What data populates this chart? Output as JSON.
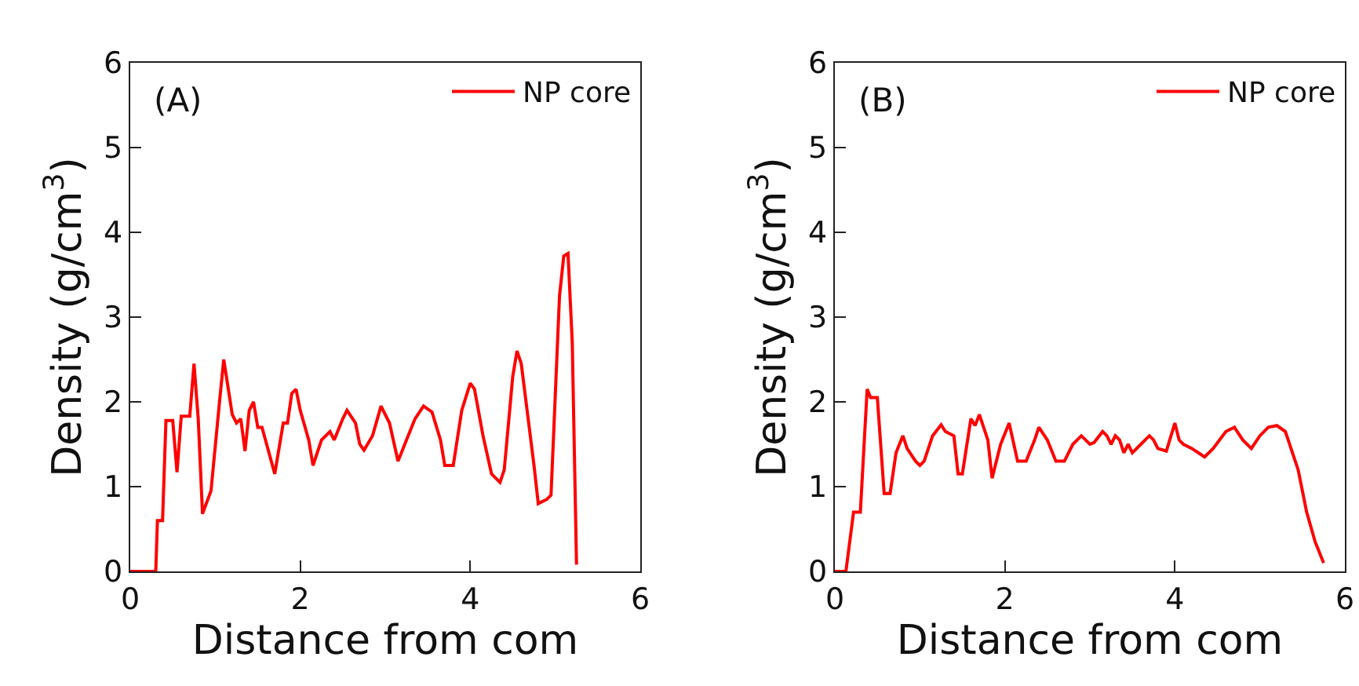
{
  "chart_data": [
    {
      "type": "line",
      "xlabel": "Distance from com",
      "ylabel": "Density (g/cm$^{3}$)",
      "annotations": [
        "(A)"
      ],
      "xlim": [
        0,
        6
      ],
      "ylim": [
        0,
        6
      ],
      "xticks": [
        0,
        2,
        4,
        6
      ],
      "yticks": [
        0,
        1,
        2,
        3,
        4,
        5,
        6
      ],
      "grid": false,
      "legend": "top right",
      "marker": "none",
      "line_style": "solid",
      "series": [
        {
          "name": "NP core",
          "color": "#ff0000",
          "x": [
            0,
            0.3,
            0.32,
            0.38,
            0.42,
            0.5,
            0.55,
            0.6,
            0.7,
            0.75,
            0.8,
            0.85,
            0.95,
            1.05,
            1.1,
            1.2,
            1.25,
            1.3,
            1.35,
            1.4,
            1.45,
            1.5,
            1.55,
            1.7,
            1.8,
            1.85,
            1.9,
            1.95,
            2.0,
            2.1,
            2.15,
            2.25,
            2.35,
            2.4,
            2.5,
            2.55,
            2.65,
            2.7,
            2.75,
            2.85,
            2.95,
            3.05,
            3.15,
            3.25,
            3.35,
            3.45,
            3.55,
            3.65,
            3.7,
            3.8,
            3.9,
            4.0,
            4.05,
            4.15,
            4.25,
            4.35,
            4.4,
            4.5,
            4.55,
            4.6,
            4.75,
            4.8,
            4.9,
            4.95,
            5.05,
            5.1,
            5.15,
            5.2,
            5.25
          ],
          "values": [
            0,
            0,
            0.6,
            0.6,
            1.78,
            1.78,
            1.17,
            1.83,
            1.83,
            2.45,
            1.8,
            0.68,
            0.95,
            2.0,
            2.5,
            1.85,
            1.75,
            1.8,
            1.42,
            1.9,
            2.0,
            1.7,
            1.7,
            1.15,
            1.75,
            1.75,
            2.1,
            2.15,
            1.9,
            1.55,
            1.25,
            1.55,
            1.65,
            1.55,
            1.8,
            1.9,
            1.75,
            1.5,
            1.43,
            1.6,
            1.95,
            1.75,
            1.3,
            1.55,
            1.8,
            1.95,
            1.88,
            1.55,
            1.25,
            1.25,
            1.9,
            2.22,
            2.15,
            1.6,
            1.15,
            1.05,
            1.2,
            2.3,
            2.6,
            2.45,
            1.25,
            0.8,
            0.85,
            0.9,
            3.25,
            3.72,
            3.75,
            2.7,
            0.08
          ]
        }
      ]
    },
    {
      "type": "line",
      "xlabel": "Distance from com",
      "ylabel": "Density (g/cm$^{3}$)",
      "annotations": [
        "(B)"
      ],
      "xlim": [
        0,
        6
      ],
      "ylim": [
        0,
        6
      ],
      "xticks": [
        0,
        2,
        4,
        6
      ],
      "yticks": [
        0,
        1,
        2,
        3,
        4,
        5,
        6
      ],
      "grid": false,
      "legend": "top right",
      "marker": "none",
      "line_style": "solid",
      "series": [
        {
          "name": "NP core",
          "color": "#ff0000",
          "x": [
            0,
            0.13,
            0.22,
            0.3,
            0.38,
            0.42,
            0.5,
            0.58,
            0.65,
            0.72,
            0.8,
            0.85,
            0.95,
            1.0,
            1.05,
            1.15,
            1.25,
            1.3,
            1.4,
            1.45,
            1.5,
            1.6,
            1.65,
            1.7,
            1.8,
            1.85,
            1.95,
            2.05,
            2.15,
            2.25,
            2.35,
            2.4,
            2.5,
            2.6,
            2.7,
            2.8,
            2.9,
            3.0,
            3.05,
            3.15,
            3.2,
            3.25,
            3.3,
            3.35,
            3.4,
            3.45,
            3.5,
            3.6,
            3.7,
            3.75,
            3.8,
            3.9,
            4.0,
            4.05,
            4.1,
            4.2,
            4.35,
            4.45,
            4.6,
            4.7,
            4.8,
            4.9,
            5.0,
            5.1,
            5.2,
            5.3,
            5.45,
            5.55,
            5.65,
            5.75
          ],
          "values": [
            0,
            0,
            0.7,
            0.7,
            2.15,
            2.05,
            2.05,
            0.92,
            0.92,
            1.4,
            1.6,
            1.45,
            1.3,
            1.25,
            1.3,
            1.6,
            1.73,
            1.65,
            1.6,
            1.15,
            1.15,
            1.8,
            1.72,
            1.85,
            1.55,
            1.1,
            1.5,
            1.75,
            1.3,
            1.3,
            1.55,
            1.7,
            1.55,
            1.3,
            1.3,
            1.5,
            1.6,
            1.5,
            1.52,
            1.65,
            1.6,
            1.5,
            1.6,
            1.55,
            1.4,
            1.5,
            1.4,
            1.5,
            1.6,
            1.55,
            1.45,
            1.42,
            1.75,
            1.55,
            1.5,
            1.45,
            1.35,
            1.45,
            1.65,
            1.7,
            1.55,
            1.45,
            1.6,
            1.7,
            1.72,
            1.65,
            1.2,
            0.7,
            0.35,
            0.1
          ]
        }
      ]
    }
  ]
}
